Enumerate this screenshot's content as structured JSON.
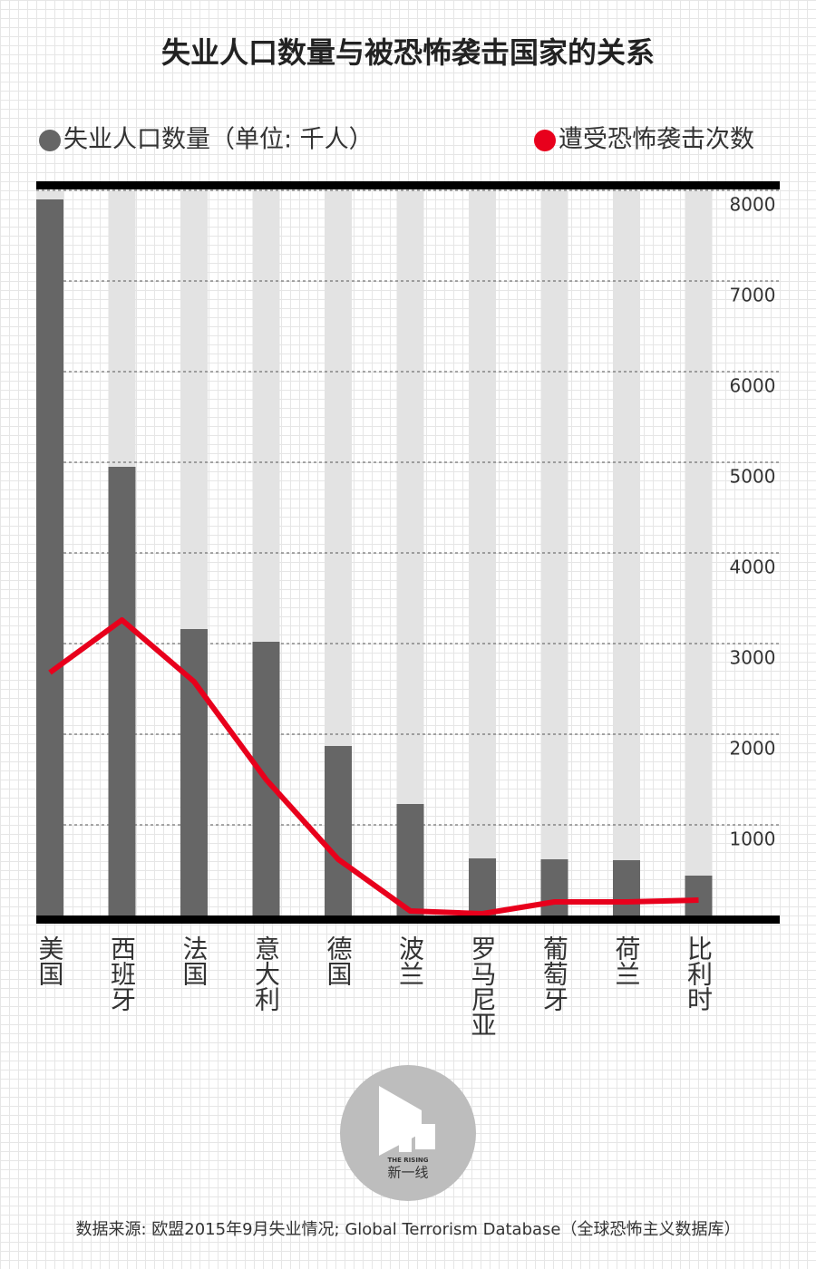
{
  "chart_data": {
    "type": "bar_line",
    "title": "失业人口数量与被恐怖袭击国家的关系",
    "categories": [
      "美国",
      "西班牙",
      "法国",
      "意大利",
      "德国",
      "波兰",
      "罗马尼亚",
      "葡萄牙",
      "荷兰",
      "比利时"
    ],
    "series": [
      {
        "name": "失业人口数量（单位: 千人）",
        "color": "#666666",
        "type": "bar",
        "values": [
          7900,
          4950,
          3160,
          3020,
          1870,
          1230,
          630,
          620,
          610,
          440
        ]
      },
      {
        "name": "遭受恐怖袭击次数",
        "color": "#e8001c",
        "type": "line",
        "values": [
          2680,
          3260,
          2580,
          1500,
          620,
          50,
          20,
          150,
          150,
          170
        ]
      }
    ],
    "ylim": [
      0,
      8000
    ],
    "yticks": [
      1000,
      2000,
      3000,
      4000,
      5000,
      6000,
      7000,
      8000
    ],
    "grid": true,
    "source": "数据来源: 欧盟2015年9月失业情况; Global Terrorism Database（全球恐怖主义数据库）"
  },
  "logo": {
    "subtext": "THE RISING",
    "text": "新一线"
  }
}
